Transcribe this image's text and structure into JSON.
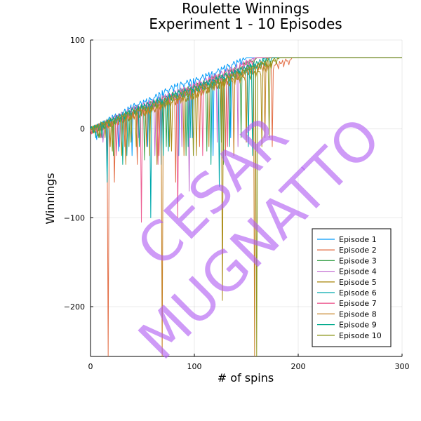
{
  "chart_data": {
    "type": "line",
    "title": "Roulette Winnings",
    "subtitle": "Experiment 1 - 10 Episodes",
    "xlabel": "# of spins",
    "ylabel": "Winnings",
    "xlim": [
      0,
      300
    ],
    "ylim": [
      -256,
      100
    ],
    "xticks": [
      0,
      100,
      200,
      300
    ],
    "yticks": [
      100,
      0,
      -100,
      -200
    ],
    "xtick_labels": [
      "0",
      "100",
      "200",
      "300"
    ],
    "ytick_labels": [
      "100",
      "0",
      "−100",
      "−200"
    ],
    "grid": true,
    "legend_position": "bottom-right",
    "target_winnings": 80,
    "series": [
      {
        "name": "Episode 1",
        "color": "#009AFA",
        "points": [
          [
            0,
            0
          ],
          [
            10,
            5
          ],
          [
            20,
            13
          ],
          [
            30,
            18
          ],
          [
            40,
            26
          ],
          [
            50,
            30
          ],
          [
            60,
            35
          ],
          [
            70,
            42
          ],
          [
            80,
            48
          ],
          [
            90,
            52
          ],
          [
            100,
            55
          ],
          [
            110,
            60
          ],
          [
            120,
            64
          ],
          [
            130,
            70
          ],
          [
            140,
            75
          ],
          [
            150,
            80
          ],
          [
            160,
            80
          ],
          [
            300,
            80
          ]
        ],
        "dips": [
          [
            6,
            -12
          ],
          [
            16,
            -40
          ],
          [
            27,
            -25
          ],
          [
            40,
            -30
          ],
          [
            55,
            -20
          ],
          [
            68,
            -40
          ],
          [
            85,
            -30
          ],
          [
            98,
            -10
          ],
          [
            118,
            -30
          ],
          [
            135,
            -10
          ]
        ]
      },
      {
        "name": "Episode 2",
        "color": "#E36F47",
        "points": [
          [
            0,
            0
          ],
          [
            10,
            4
          ],
          [
            18,
            7
          ],
          [
            25,
            9
          ],
          [
            40,
            18
          ],
          [
            60,
            26
          ],
          [
            80,
            36
          ],
          [
            100,
            45
          ],
          [
            120,
            54
          ],
          [
            140,
            62
          ],
          [
            160,
            70
          ],
          [
            180,
            73
          ],
          [
            193,
            79
          ],
          [
            194,
            80
          ],
          [
            300,
            80
          ]
        ],
        "dips": [
          [
            17,
            -256
          ],
          [
            23,
            -60
          ],
          [
            33,
            -20
          ],
          [
            45,
            -40
          ],
          [
            66,
            -30
          ],
          [
            82,
            -60
          ],
          [
            105,
            -20
          ],
          [
            130,
            -30
          ],
          [
            150,
            -10
          ],
          [
            175,
            -20
          ]
        ]
      },
      {
        "name": "Episode 3",
        "color": "#3EA44E",
        "points": [
          [
            0,
            0
          ],
          [
            10,
            6
          ],
          [
            20,
            11
          ],
          [
            30,
            16
          ],
          [
            40,
            22
          ],
          [
            60,
            30
          ],
          [
            80,
            40
          ],
          [
            100,
            48
          ],
          [
            120,
            58
          ],
          [
            140,
            68
          ],
          [
            154,
            76
          ],
          [
            160,
            80
          ],
          [
            300,
            80
          ]
        ],
        "dips": [
          [
            8,
            -10
          ],
          [
            22,
            -30
          ],
          [
            37,
            -20
          ],
          [
            52,
            -35
          ],
          [
            73,
            -20
          ],
          [
            92,
            -30
          ],
          [
            112,
            -25
          ],
          [
            128,
            -40
          ],
          [
            145,
            -10
          ]
        ]
      },
      {
        "name": "Episode 4",
        "color": "#C371D2",
        "points": [
          [
            0,
            0
          ],
          [
            10,
            5
          ],
          [
            20,
            11
          ],
          [
            30,
            17
          ],
          [
            40,
            23
          ],
          [
            60,
            31
          ],
          [
            80,
            41
          ],
          [
            100,
            50
          ],
          [
            120,
            60
          ],
          [
            140,
            70
          ],
          [
            158,
            80
          ],
          [
            300,
            80
          ]
        ],
        "dips": [
          [
            12,
            -15
          ],
          [
            28,
            -20
          ],
          [
            46,
            -10
          ],
          [
            62,
            -30
          ],
          [
            88,
            -20
          ],
          [
            95,
            -70
          ],
          [
            122,
            -15
          ],
          [
            142,
            -20
          ]
        ]
      },
      {
        "name": "Episode 5",
        "color": "#AC8D18",
        "points": [
          [
            0,
            0
          ],
          [
            10,
            5
          ],
          [
            20,
            9
          ],
          [
            40,
            17
          ],
          [
            60,
            25
          ],
          [
            80,
            33
          ],
          [
            100,
            40
          ],
          [
            120,
            50
          ],
          [
            140,
            56
          ],
          [
            160,
            64
          ],
          [
            170,
            70
          ],
          [
            180,
            80
          ],
          [
            300,
            80
          ]
        ],
        "dips": [
          [
            14,
            -10
          ],
          [
            30,
            -30
          ],
          [
            44,
            -20
          ],
          [
            64,
            -40
          ],
          [
            78,
            -25
          ],
          [
            102,
            -30
          ],
          [
            127,
            -193
          ],
          [
            150,
            -15
          ],
          [
            165,
            -20
          ]
        ]
      },
      {
        "name": "Episode 6",
        "color": "#00A9AD",
        "points": [
          [
            0,
            0
          ],
          [
            10,
            5
          ],
          [
            20,
            10
          ],
          [
            30,
            16
          ],
          [
            40,
            21
          ],
          [
            60,
            30
          ],
          [
            80,
            38
          ],
          [
            100,
            46
          ],
          [
            120,
            55
          ],
          [
            140,
            64
          ],
          [
            160,
            74
          ],
          [
            168,
            80
          ],
          [
            300,
            80
          ]
        ],
        "dips": [
          [
            5,
            -10
          ],
          [
            16,
            -60
          ],
          [
            35,
            -30
          ],
          [
            58,
            -100
          ],
          [
            75,
            -25
          ],
          [
            96,
            -10
          ],
          [
            124,
            -65
          ],
          [
            152,
            -20
          ]
        ]
      },
      {
        "name": "Episode 7",
        "color": "#ED5D92",
        "points": [
          [
            0,
            0
          ],
          [
            10,
            4
          ],
          [
            20,
            9
          ],
          [
            30,
            14
          ],
          [
            40,
            20
          ],
          [
            60,
            29
          ],
          [
            80,
            38
          ],
          [
            100,
            48
          ],
          [
            120,
            58
          ],
          [
            140,
            67
          ],
          [
            150,
            74
          ],
          [
            160,
            80
          ],
          [
            300,
            80
          ]
        ],
        "dips": [
          [
            10,
            -10
          ],
          [
            25,
            -30
          ],
          [
            49,
            -105
          ],
          [
            65,
            -40
          ],
          [
            84,
            -100
          ],
          [
            108,
            -30
          ],
          [
            132,
            -20
          ]
        ]
      },
      {
        "name": "Episode 8",
        "color": "#C68225",
        "points": [
          [
            0,
            0
          ],
          [
            10,
            4
          ],
          [
            20,
            8
          ],
          [
            40,
            16
          ],
          [
            60,
            24
          ],
          [
            80,
            32
          ],
          [
            100,
            40
          ],
          [
            120,
            50
          ],
          [
            140,
            60
          ],
          [
            150,
            66
          ],
          [
            158,
            70
          ],
          [
            165,
            75
          ],
          [
            172,
            80
          ],
          [
            300,
            80
          ]
        ],
        "dips": [
          [
            7,
            -8
          ],
          [
            19,
            -20
          ],
          [
            34,
            -40
          ],
          [
            54,
            -20
          ],
          [
            69,
            -256
          ],
          [
            90,
            -30
          ],
          [
            114,
            -20
          ],
          [
            138,
            -30
          ],
          [
            158,
            -256
          ],
          [
            168,
            -10
          ]
        ]
      },
      {
        "name": "Episode 9",
        "color": "#00A98D",
        "points": [
          [
            0,
            0
          ],
          [
            10,
            5
          ],
          [
            20,
            10
          ],
          [
            30,
            15
          ],
          [
            40,
            21
          ],
          [
            60,
            30
          ],
          [
            80,
            39
          ],
          [
            100,
            47
          ],
          [
            120,
            56
          ],
          [
            140,
            65
          ],
          [
            160,
            74
          ],
          [
            176,
            80
          ],
          [
            300,
            80
          ]
        ],
        "dips": [
          [
            11,
            -10
          ],
          [
            31,
            -40
          ],
          [
            47,
            -20
          ],
          [
            70,
            -30
          ],
          [
            94,
            -20
          ],
          [
            116,
            -40
          ],
          [
            134,
            -20
          ],
          [
            156,
            -30
          ]
        ]
      },
      {
        "name": "Episode 10",
        "color": "#8E971E",
        "points": [
          [
            0,
            0
          ],
          [
            10,
            4
          ],
          [
            20,
            9
          ],
          [
            30,
            14
          ],
          [
            40,
            19
          ],
          [
            60,
            27
          ],
          [
            80,
            36
          ],
          [
            100,
            45
          ],
          [
            120,
            53
          ],
          [
            140,
            62
          ],
          [
            160,
            71
          ],
          [
            170,
            76
          ],
          [
            182,
            80
          ],
          [
            300,
            80
          ]
        ],
        "dips": [
          [
            9,
            -10
          ],
          [
            21,
            -25
          ],
          [
            39,
            -15
          ],
          [
            57,
            -30
          ],
          [
            76,
            -20
          ],
          [
            99,
            -30
          ],
          [
            126,
            -15
          ],
          [
            160,
            -256
          ],
          [
            172,
            -10
          ]
        ]
      }
    ]
  },
  "watermark": {
    "line1": "CESAR",
    "line2": "MUGNATTO"
  }
}
